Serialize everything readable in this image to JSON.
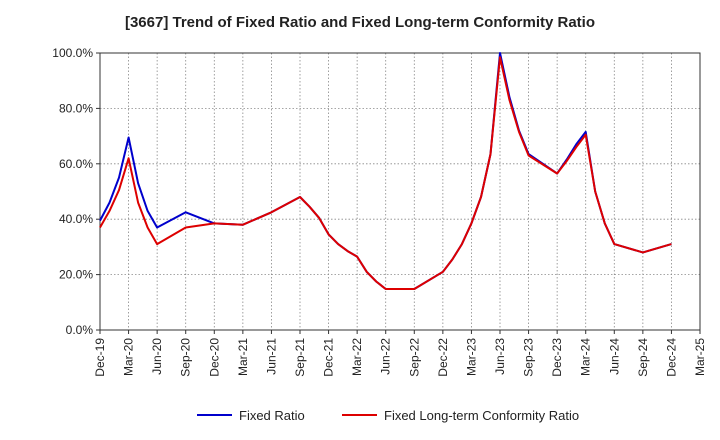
{
  "chart_data": {
    "type": "line",
    "title": "[3667]  Trend of Fixed Ratio and Fixed Long-term Conformity Ratio",
    "xlabel": "",
    "ylabel": "",
    "ylim": [
      0,
      100
    ],
    "yticks": [
      "0.0%",
      "20.0%",
      "40.0%",
      "60.0%",
      "80.0%",
      "100.0%"
    ],
    "xticks": [
      "Dec-19",
      "Mar-20",
      "Jun-20",
      "Sep-20",
      "Dec-20",
      "Mar-21",
      "Jun-21",
      "Sep-21",
      "Dec-21",
      "Mar-22",
      "Jun-22",
      "Sep-22",
      "Dec-22",
      "Mar-23",
      "Jun-23",
      "Sep-23",
      "Dec-23",
      "Mar-24",
      "Jun-24",
      "Sep-24",
      "Dec-24",
      "Mar-25"
    ],
    "grid": true,
    "legend_position": "bottom",
    "series": [
      {
        "name": "Fixed Ratio",
        "color": "#0000cc",
        "points": [
          [
            "2019-12",
            39.5
          ],
          [
            "2020-01",
            46
          ],
          [
            "2020-02",
            55
          ],
          [
            "2020-03",
            69.5
          ],
          [
            "2020-04",
            53
          ],
          [
            "2020-05",
            43
          ],
          [
            "2020-06",
            37
          ],
          [
            "2020-09",
            42.5
          ],
          [
            "2020-12",
            38.5
          ],
          [
            "2021-03",
            38
          ],
          [
            "2021-06",
            42.5
          ],
          [
            "2021-09",
            48
          ],
          [
            "2021-10",
            44.5
          ],
          [
            "2021-11",
            40.5
          ],
          [
            "2021-12",
            34.5
          ],
          [
            "2022-01",
            31
          ],
          [
            "2022-02",
            28.5
          ],
          [
            "2022-03",
            26.5
          ],
          [
            "2022-04",
            21
          ],
          [
            "2022-05",
            17.5
          ],
          [
            "2022-06",
            14.8
          ],
          [
            "2022-09",
            14.8
          ],
          [
            "2022-12",
            21
          ],
          [
            "2023-01",
            25.5
          ],
          [
            "2023-02",
            31
          ],
          [
            "2023-03",
            38.5
          ],
          [
            "2023-04",
            48
          ],
          [
            "2023-05",
            63.5
          ],
          [
            "2023-06",
            100
          ],
          [
            "2023-07",
            84
          ],
          [
            "2023-08",
            72
          ],
          [
            "2023-09",
            63.5
          ],
          [
            "2023-12",
            56.5
          ],
          [
            "2024-01",
            61.5
          ],
          [
            "2024-02",
            67
          ],
          [
            "2024-03",
            71.5
          ],
          [
            "2024-04",
            50
          ],
          [
            "2024-05",
            38.5
          ],
          [
            "2024-06",
            31
          ],
          [
            "2024-09",
            28
          ],
          [
            "2024-12",
            31
          ]
        ]
      },
      {
        "name": "Fixed Long-term Conformity Ratio",
        "color": "#dd0000",
        "points": [
          [
            "2019-12",
            37
          ],
          [
            "2020-01",
            43
          ],
          [
            "2020-02",
            50.5
          ],
          [
            "2020-03",
            62
          ],
          [
            "2020-04",
            46
          ],
          [
            "2020-05",
            37
          ],
          [
            "2020-06",
            31
          ],
          [
            "2020-09",
            37
          ],
          [
            "2020-12",
            38.5
          ],
          [
            "2021-03",
            38
          ],
          [
            "2021-06",
            42.5
          ],
          [
            "2021-09",
            48
          ],
          [
            "2021-10",
            44.5
          ],
          [
            "2021-11",
            40.5
          ],
          [
            "2021-12",
            34.5
          ],
          [
            "2022-01",
            31
          ],
          [
            "2022-02",
            28.5
          ],
          [
            "2022-03",
            26.5
          ],
          [
            "2022-04",
            21
          ],
          [
            "2022-05",
            17.5
          ],
          [
            "2022-06",
            14.8
          ],
          [
            "2022-09",
            14.8
          ],
          [
            "2022-12",
            21
          ],
          [
            "2023-01",
            25.5
          ],
          [
            "2023-02",
            31
          ],
          [
            "2023-03",
            38.5
          ],
          [
            "2023-04",
            48
          ],
          [
            "2023-05",
            63.5
          ],
          [
            "2023-06",
            98.5
          ],
          [
            "2023-07",
            83
          ],
          [
            "2023-08",
            71.5
          ],
          [
            "2023-09",
            63
          ],
          [
            "2023-12",
            56.5
          ],
          [
            "2024-01",
            61
          ],
          [
            "2024-02",
            66
          ],
          [
            "2024-03",
            70.5
          ],
          [
            "2024-04",
            50
          ],
          [
            "2024-05",
            38.5
          ],
          [
            "2024-06",
            31
          ],
          [
            "2024-09",
            28
          ],
          [
            "2024-12",
            31
          ]
        ]
      }
    ]
  }
}
